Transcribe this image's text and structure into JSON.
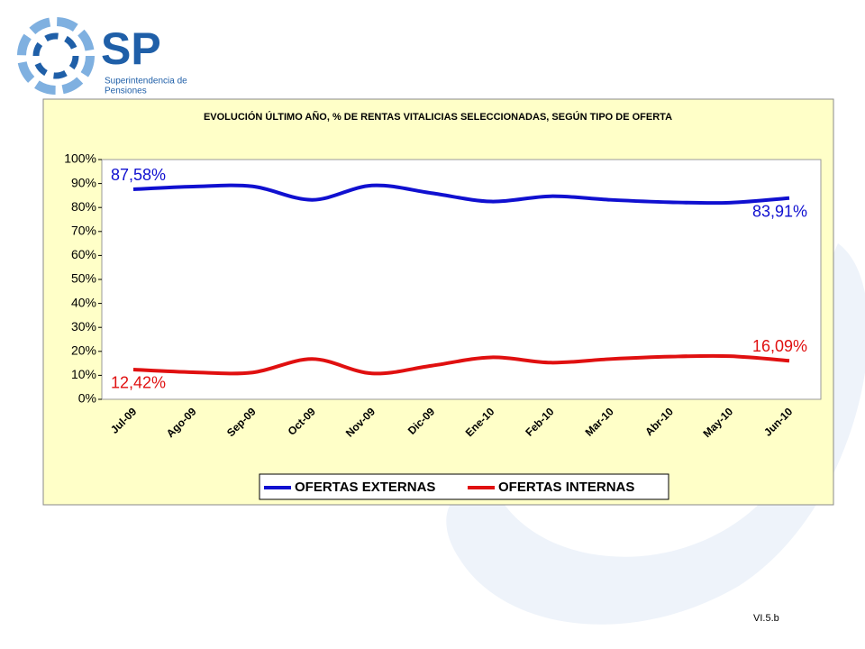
{
  "logo": {
    "mark": "SP",
    "line1": "Superintendencia de",
    "line2": "Pensiones"
  },
  "chart_data": {
    "type": "line",
    "title": "EVOLUCIÓN ÚLTIMO AÑO, % DE RENTAS VITALICIAS SELECCIONADAS, SEGÚN TIPO DE OFERTA",
    "categories": [
      "Jul-09",
      "Ago-09",
      "Sep-09",
      "Oct-09",
      "Nov-09",
      "Dic-09",
      "Ene-10",
      "Feb-10",
      "Mar-10",
      "Abr-10",
      "May-10",
      "Jun-10"
    ],
    "series": [
      {
        "name": "OFERTAS EXTERNAS",
        "color": "#1010d0",
        "values": [
          87.58,
          88.7,
          88.8,
          83.2,
          89.2,
          86.0,
          82.5,
          84.7,
          83.2,
          82.2,
          82.0,
          83.91
        ],
        "value_labels": [
          "87,58%",
          null,
          null,
          null,
          null,
          null,
          null,
          null,
          null,
          null,
          null,
          "83,91%"
        ]
      },
      {
        "name": "OFERTAS INTERNAS",
        "color": "#e01010",
        "values": [
          12.42,
          11.3,
          11.2,
          16.8,
          10.8,
          14.0,
          17.5,
          15.3,
          16.8,
          17.8,
          18.0,
          16.09
        ],
        "value_labels": [
          "12,42%",
          null,
          null,
          null,
          null,
          null,
          null,
          null,
          null,
          null,
          null,
          "16,09%"
        ]
      }
    ],
    "ylim": [
      0,
      100
    ],
    "yticks": [
      {
        "value": 0,
        "label": "0%"
      },
      {
        "value": 10,
        "label": "10%"
      },
      {
        "value": 20,
        "label": "20%"
      },
      {
        "value": 30,
        "label": "30%"
      },
      {
        "value": 40,
        "label": "40%"
      },
      {
        "value": 50,
        "label": "50%"
      },
      {
        "value": 60,
        "label": "60%"
      },
      {
        "value": 70,
        "label": "70%"
      },
      {
        "value": 80,
        "label": "80%"
      },
      {
        "value": 90,
        "label": "90%"
      },
      {
        "value": 100,
        "label": "100%"
      }
    ],
    "legend": "bottom"
  },
  "footer": "VI.5.b"
}
